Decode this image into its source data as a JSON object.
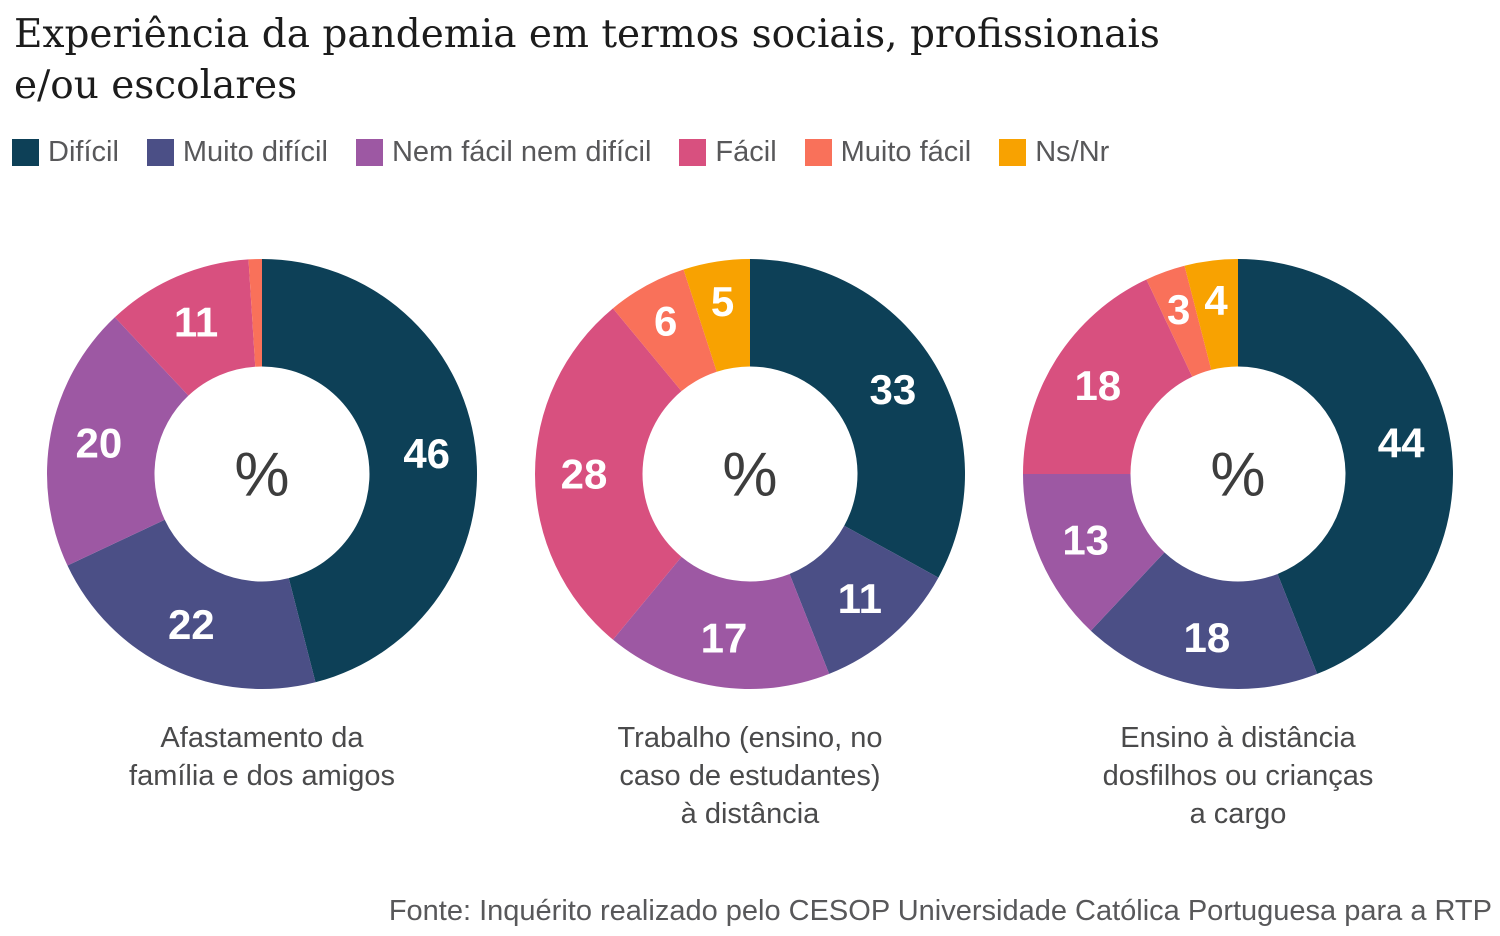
{
  "title": "Experiência da pandemia em termos sociais, profissionais\ne/ou escolares",
  "legend": {
    "items": [
      {
        "label": "Difícil",
        "color": "#0d4057"
      },
      {
        "label": "Muito difícil",
        "color": "#4b4f86"
      },
      {
        "label": "Nem fácil nem difícil",
        "color": "#9d58a3"
      },
      {
        "label": "Fácil",
        "color": "#d8507f"
      },
      {
        "label": "Muito fácil",
        "color": "#f9715a"
      },
      {
        "label": "Ns/Nr",
        "color": "#f8a201"
      }
    ]
  },
  "footer": "Fonte: Inquérito realizado pelo CESOP Universidade Católica Portuguesa para a RTP",
  "chart_data": [
    {
      "type": "pie",
      "subtype": "donut",
      "title": "Afastamento da\nfamília e dos amigos",
      "unit": "%",
      "center_label": "%",
      "start_angle_deg": 0,
      "direction": "clockwise",
      "slices": [
        {
          "label": "Difícil",
          "value": 46,
          "color": "#0d4057"
        },
        {
          "label": "Muito difícil",
          "value": 22,
          "color": "#4b4f86"
        },
        {
          "label": "Nem fácil nem difícil",
          "value": 20,
          "color": "#9d58a3"
        },
        {
          "label": "Fácil",
          "value": 11,
          "color": "#d8507f"
        },
        {
          "label": "Muito fácil",
          "value": 1,
          "color": "#f9715a",
          "label_outside": true
        }
      ]
    },
    {
      "type": "pie",
      "subtype": "donut",
      "title": "Trabalho (ensino, no\ncaso de estudantes)\nà distância",
      "unit": "%",
      "center_label": "%",
      "start_angle_deg": 0,
      "direction": "clockwise",
      "slices": [
        {
          "label": "Difícil",
          "value": 33,
          "color": "#0d4057"
        },
        {
          "label": "Muito difícil",
          "value": 11,
          "color": "#4b4f86"
        },
        {
          "label": "Nem fácil nem difícil",
          "value": 17,
          "color": "#9d58a3"
        },
        {
          "label": "Fácil",
          "value": 28,
          "color": "#d8507f"
        },
        {
          "label": "Muito fácil",
          "value": 6,
          "color": "#f9715a"
        },
        {
          "label": "Ns/Nr",
          "value": 5,
          "color": "#f8a201"
        }
      ]
    },
    {
      "type": "pie",
      "subtype": "donut",
      "title": "Ensino à distância\ndosfilhos ou crianças\na cargo",
      "unit": "%",
      "center_label": "%",
      "start_angle_deg": 0,
      "direction": "clockwise",
      "slices": [
        {
          "label": "Difícil",
          "value": 44,
          "color": "#0d4057"
        },
        {
          "label": "Muito difícil",
          "value": 18,
          "color": "#4b4f86"
        },
        {
          "label": "Nem fácil nem difícil",
          "value": 13,
          "color": "#9d58a3"
        },
        {
          "label": "Fácil",
          "value": 18,
          "color": "#d8507f"
        },
        {
          "label": "Muito fácil",
          "value": 3,
          "color": "#f9715a"
        },
        {
          "label": "Ns/Nr",
          "value": 4,
          "color": "#f8a201"
        }
      ]
    }
  ]
}
